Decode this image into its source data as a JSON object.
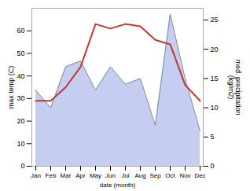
{
  "chart_data": {
    "type": "line",
    "categories": [
      "Jan",
      "Feb",
      "Mar",
      "Apr",
      "May",
      "Jun",
      "Jul",
      "Aug",
      "Sep",
      "Oct",
      "Nov",
      "Dec"
    ],
    "xlabel": "date (month)",
    "ylabel": "max temp (C)",
    "y2label": "med. precipitation\n(kg/m2)",
    "ylim": [
      0,
      70
    ],
    "yticks": [
      0,
      10,
      20,
      30,
      40,
      50,
      60
    ],
    "y2lim": [
      0,
      27
    ],
    "y2ticks": [
      0,
      5,
      10,
      15,
      20,
      25
    ],
    "series": [
      {
        "type": "line",
        "color": "#c0392b",
        "values": [
          29,
          29,
          35,
          44,
          63,
          61,
          63,
          62,
          56,
          54,
          36,
          29
        ]
      },
      {
        "type": "area",
        "axis": "y2",
        "color": "#c5cdf0",
        "values": [
          13,
          10,
          17,
          18,
          13,
          17,
          14,
          15,
          7,
          26,
          15,
          6
        ]
      }
    ]
  }
}
